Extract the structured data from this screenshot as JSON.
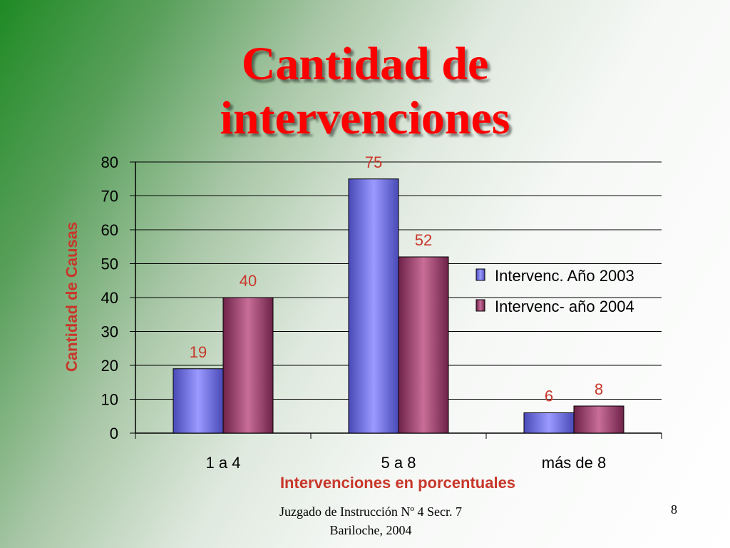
{
  "slide": {
    "title_lines": [
      "Cantidad de",
      "intervenciones"
    ],
    "footer_lines": [
      "Juzgado de Instrucción Nº 4 Secr. 7",
      "Bariloche, 2004"
    ],
    "page_number": "8"
  },
  "chart_data": {
    "type": "bar",
    "title": "Cantidad de intervenciones",
    "xlabel": "Intervenciones en porcentuales",
    "ylabel": "Cantidad de Causas",
    "categories": [
      "1 a 4",
      "5 a 8",
      "más de 8"
    ],
    "series": [
      {
        "name": "Intervenc. Año 2003",
        "values": [
          19,
          75,
          6
        ],
        "color": "#8f8fff"
      },
      {
        "name": "Intervenc- año 2004",
        "values": [
          40,
          52,
          8
        ],
        "color": "#a84a78"
      }
    ],
    "ylim": [
      0,
      80
    ],
    "yticks": [
      0,
      10,
      20,
      30,
      40,
      50,
      60,
      70,
      80
    ],
    "grid": true,
    "legend_position": "right",
    "data_labels": true,
    "label_color": "#c8372a",
    "axis_title_color": "#c8372a"
  }
}
